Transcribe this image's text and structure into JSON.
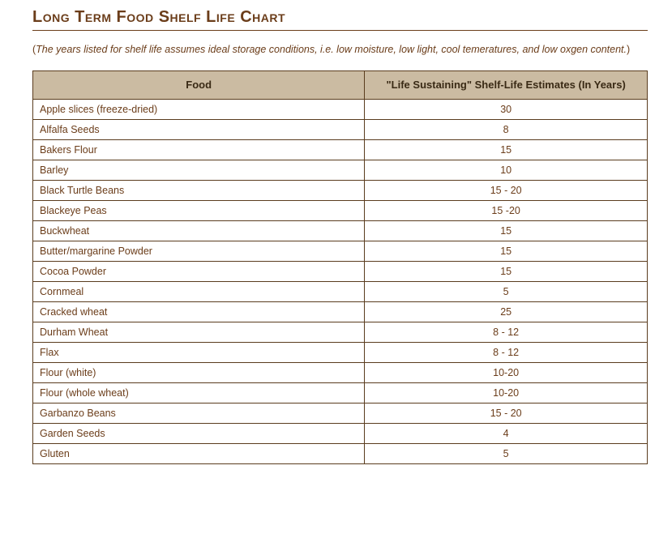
{
  "title": "Long Term Food Shelf Life Chart",
  "note_text": "The years listed for shelf life assumes ideal storage conditions, i.e. low moisture, low light, cool temeratures, and low oxgen content.",
  "table": {
    "type": "table",
    "header_bg": "#cbbba2",
    "border_color": "#5a3c1e",
    "text_color": "#6b3d1a",
    "header_text_color": "#3a2a15",
    "columns": [
      {
        "label": "Food",
        "width_pct": 54,
        "align": "left"
      },
      {
        "label": "\"Life Sustaining\" Shelf-Life Estimates (In Years)",
        "width_pct": 46,
        "align": "center"
      }
    ],
    "rows": [
      {
        "food": "Apple slices (freeze-dried)",
        "life": "30"
      },
      {
        "food": "Alfalfa Seeds",
        "life": "8"
      },
      {
        "food": "Bakers Flour",
        "life": "15"
      },
      {
        "food": "Barley",
        "life": "10"
      },
      {
        "food": "Black Turtle Beans",
        "life": "15 - 20"
      },
      {
        "food": "Blackeye Peas",
        "life": "15 -20"
      },
      {
        "food": "Buckwheat",
        "life": "15"
      },
      {
        "food": "Butter/margarine Powder",
        "life": "15"
      },
      {
        "food": "Cocoa Powder",
        "life": "15"
      },
      {
        "food": "Cornmeal",
        "life": "5"
      },
      {
        "food": "Cracked wheat",
        "life": "25"
      },
      {
        "food": "Durham Wheat",
        "life": "8 - 12"
      },
      {
        "food": "Flax",
        "life": "8 - 12"
      },
      {
        "food": "Flour (white)",
        "life": "10-20"
      },
      {
        "food": "Flour (whole wheat)",
        "life": "10-20"
      },
      {
        "food": "Garbanzo Beans",
        "life": "15 - 20"
      },
      {
        "food": "Garden Seeds",
        "life": "4"
      },
      {
        "food": "Gluten",
        "life": "5"
      }
    ]
  }
}
